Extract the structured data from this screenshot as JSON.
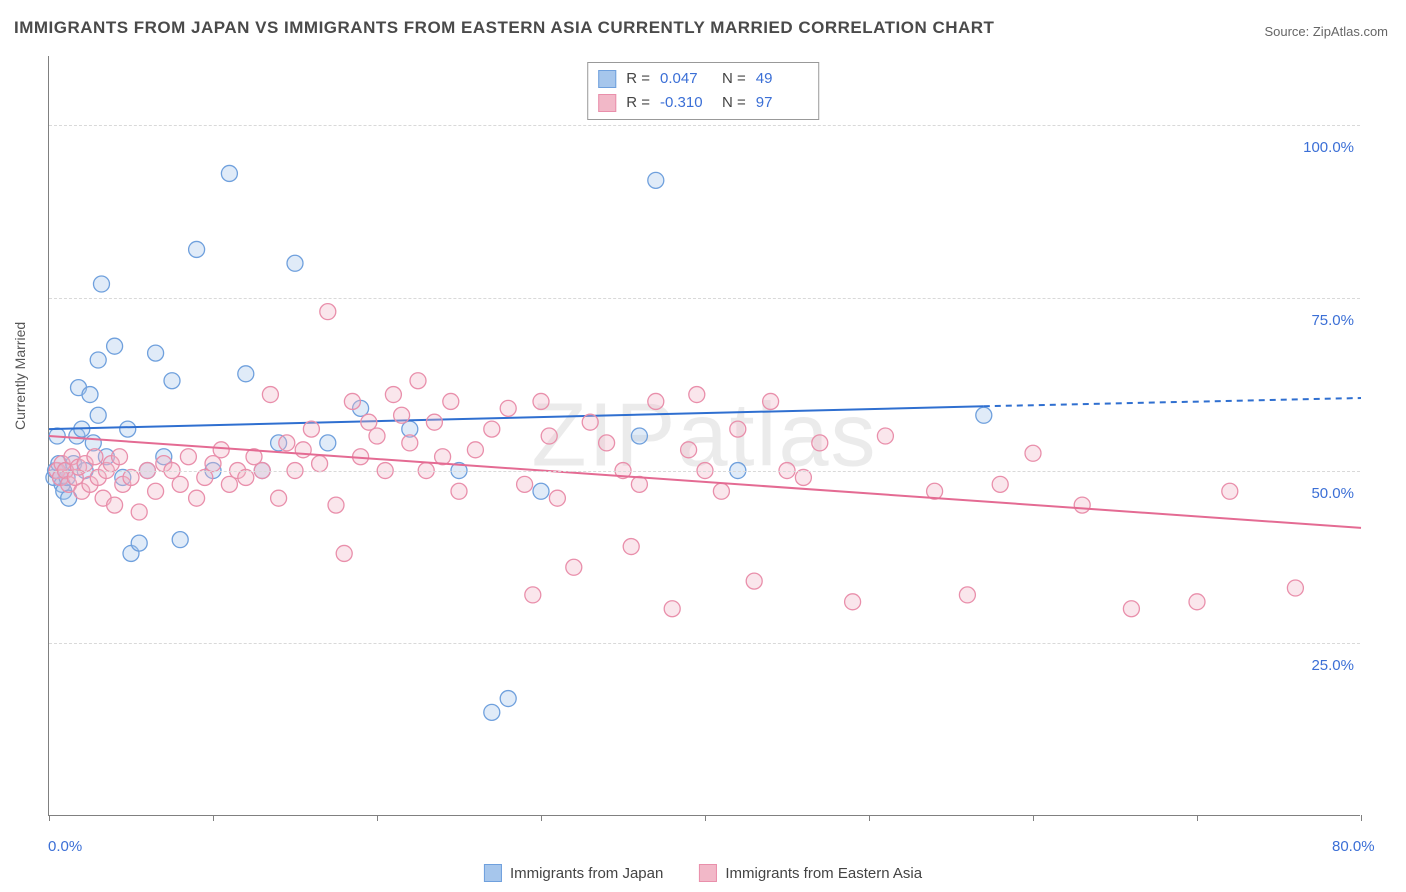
{
  "title": "IMMIGRANTS FROM JAPAN VS IMMIGRANTS FROM EASTERN ASIA CURRENTLY MARRIED CORRELATION CHART",
  "source": "Source: ZipAtlas.com",
  "y_axis_label": "Currently Married",
  "watermark": "ZIPatlas",
  "chart": {
    "type": "scatter",
    "background_color": "#ffffff",
    "grid_color": "#d9d9d9",
    "axis_color": "#808080",
    "tick_label_color": "#3b6fd6",
    "xlim": [
      0,
      80
    ],
    "ylim": [
      0,
      110
    ],
    "x_ticks": [
      0,
      10,
      20,
      30,
      40,
      50,
      60,
      70,
      80
    ],
    "x_tick_labels": {
      "0": "0.0%",
      "80": "80.0%"
    },
    "y_gridlines": [
      25,
      50,
      75,
      100
    ],
    "y_tick_labels": {
      "25": "25.0%",
      "50": "50.0%",
      "75": "75.0%",
      "100": "100.0%"
    },
    "marker_radius": 8,
    "marker_stroke_width": 1.3,
    "marker_fill_opacity": 0.35,
    "trend_line_width": 2
  },
  "series": [
    {
      "id": "japan",
      "label": "Immigrants from Japan",
      "color_fill": "#a6c6ec",
      "color_stroke": "#6fa0dd",
      "trend_color": "#2f6fd0",
      "r": "0.047",
      "n": "49",
      "trend": {
        "x1": 0,
        "y1": 56,
        "x2": 57,
        "y2": 59.3,
        "x2_dash": 80,
        "y2_dash": 60.5
      },
      "points": [
        [
          0.3,
          49
        ],
        [
          0.4,
          50
        ],
        [
          0.5,
          55
        ],
        [
          0.6,
          51
        ],
        [
          0.7,
          49
        ],
        [
          0.8,
          48
        ],
        [
          0.9,
          47
        ],
        [
          1,
          50
        ],
        [
          1.1,
          49
        ],
        [
          1.2,
          46
        ],
        [
          1.5,
          51
        ],
        [
          1.7,
          55
        ],
        [
          1.8,
          62
        ],
        [
          2,
          56
        ],
        [
          2.2,
          50
        ],
        [
          2.5,
          61
        ],
        [
          2.7,
          54
        ],
        [
          3,
          58
        ],
        [
          3,
          66
        ],
        [
          3.2,
          77
        ],
        [
          3.5,
          52
        ],
        [
          4,
          68
        ],
        [
          4.5,
          49
        ],
        [
          4.8,
          56
        ],
        [
          5,
          38
        ],
        [
          5.5,
          39.5
        ],
        [
          6,
          50
        ],
        [
          6.5,
          67
        ],
        [
          7,
          52
        ],
        [
          7.5,
          63
        ],
        [
          8,
          40
        ],
        [
          9,
          82
        ],
        [
          10,
          50
        ],
        [
          11,
          93
        ],
        [
          12,
          64
        ],
        [
          13,
          50
        ],
        [
          14,
          54
        ],
        [
          15,
          80
        ],
        [
          17,
          54
        ],
        [
          19,
          59
        ],
        [
          22,
          56
        ],
        [
          25,
          50
        ],
        [
          27,
          15
        ],
        [
          28,
          17
        ],
        [
          30,
          47
        ],
        [
          36,
          55
        ],
        [
          37,
          92
        ],
        [
          42,
          50
        ],
        [
          57,
          58
        ]
      ]
    },
    {
      "id": "east_asia",
      "label": "Immigrants from Eastern Asia",
      "color_fill": "#f2b8c8",
      "color_stroke": "#e98fab",
      "trend_color": "#e46b93",
      "r": "-0.310",
      "n": "97",
      "trend": {
        "x1": 0,
        "y1": 55,
        "x2": 80,
        "y2": 41.7
      },
      "points": [
        [
          0.5,
          50
        ],
        [
          0.7,
          49
        ],
        [
          0.8,
          51
        ],
        [
          1,
          50
        ],
        [
          1.2,
          48
        ],
        [
          1.4,
          52
        ],
        [
          1.6,
          49
        ],
        [
          1.8,
          50.5
        ],
        [
          2,
          47
        ],
        [
          2.2,
          51
        ],
        [
          2.5,
          48
        ],
        [
          2.8,
          52
        ],
        [
          3,
          49
        ],
        [
          3.3,
          46
        ],
        [
          3.5,
          50
        ],
        [
          3.8,
          51
        ],
        [
          4,
          45
        ],
        [
          4.3,
          52
        ],
        [
          4.5,
          48
        ],
        [
          5,
          49
        ],
        [
          5.5,
          44
        ],
        [
          6,
          50
        ],
        [
          6.5,
          47
        ],
        [
          7,
          51
        ],
        [
          7.5,
          50
        ],
        [
          8,
          48
        ],
        [
          8.5,
          52
        ],
        [
          9,
          46
        ],
        [
          9.5,
          49
        ],
        [
          10,
          51
        ],
        [
          10.5,
          53
        ],
        [
          11,
          48
        ],
        [
          11.5,
          50
        ],
        [
          12,
          49
        ],
        [
          12.5,
          52
        ],
        [
          13,
          50
        ],
        [
          13.5,
          61
        ],
        [
          14,
          46
        ],
        [
          14.5,
          54
        ],
        [
          15,
          50
        ],
        [
          15.5,
          53
        ],
        [
          16,
          56
        ],
        [
          16.5,
          51
        ],
        [
          17,
          73
        ],
        [
          17.5,
          45
        ],
        [
          18,
          38
        ],
        [
          18.5,
          60
        ],
        [
          19,
          52
        ],
        [
          19.5,
          57
        ],
        [
          20,
          55
        ],
        [
          20.5,
          50
        ],
        [
          21,
          61
        ],
        [
          21.5,
          58
        ],
        [
          22,
          54
        ],
        [
          22.5,
          63
        ],
        [
          23,
          50
        ],
        [
          23.5,
          57
        ],
        [
          24,
          52
        ],
        [
          24.5,
          60
        ],
        [
          25,
          47
        ],
        [
          26,
          53
        ],
        [
          27,
          56
        ],
        [
          28,
          59
        ],
        [
          29,
          48
        ],
        [
          29.5,
          32
        ],
        [
          30,
          60
        ],
        [
          30.5,
          55
        ],
        [
          31,
          46
        ],
        [
          32,
          36
        ],
        [
          33,
          57
        ],
        [
          34,
          54
        ],
        [
          35,
          50
        ],
        [
          35.5,
          39
        ],
        [
          36,
          48
        ],
        [
          37,
          60
        ],
        [
          38,
          30
        ],
        [
          39,
          53
        ],
        [
          39.5,
          61
        ],
        [
          40,
          50
        ],
        [
          41,
          47
        ],
        [
          42,
          56
        ],
        [
          43,
          34
        ],
        [
          44,
          60
        ],
        [
          45,
          50
        ],
        [
          46,
          49
        ],
        [
          47,
          54
        ],
        [
          49,
          31
        ],
        [
          51,
          55
        ],
        [
          54,
          47
        ],
        [
          56,
          32
        ],
        [
          58,
          48
        ],
        [
          60,
          52.5
        ],
        [
          63,
          45
        ],
        [
          66,
          30
        ],
        [
          70,
          31
        ],
        [
          76,
          33
        ],
        [
          72,
          47
        ]
      ]
    }
  ],
  "stats_box_labels": {
    "r": "R =",
    "n": "N ="
  },
  "legend": {
    "swatch_size": 18
  }
}
